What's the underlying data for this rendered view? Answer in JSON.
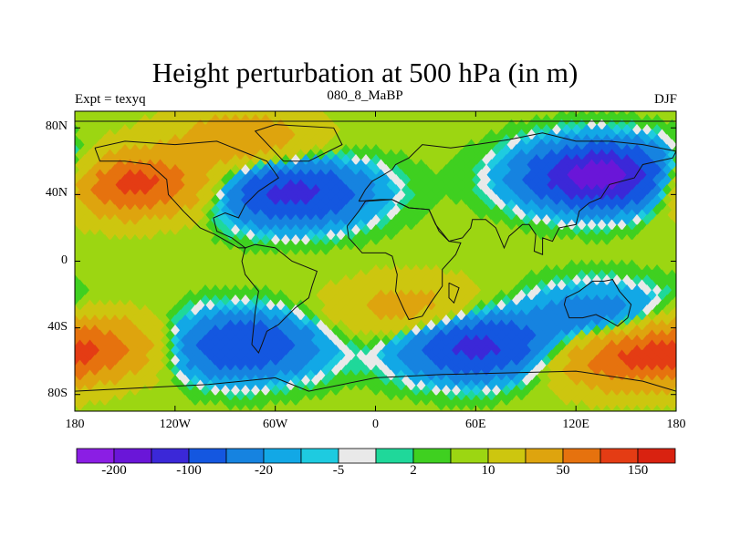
{
  "title": "Height perturbation at 500 hPa (in m)",
  "left_string": "Expt = texyq",
  "center_string": "080_8_MaBP",
  "right_string": "DJF",
  "lat_labels": [
    "80N",
    "40N",
    "0",
    "40S",
    "80S"
  ],
  "lon_labels": [
    "180",
    "120W",
    "60W",
    "0",
    "60E",
    "120E",
    "180"
  ],
  "colorbar": {
    "colors": [
      "#8b1ee4",
      "#6a16d8",
      "#3b28d8",
      "#1457e0",
      "#1683e0",
      "#12a8e6",
      "#1ecbe0",
      "#e9e9e9",
      "#1fd89a",
      "#3fd020",
      "#9cd612",
      "#cdc60f",
      "#dea40e",
      "#e6720e",
      "#e43c14",
      "#d92210"
    ],
    "labels": [
      "-200",
      "-100",
      "-20",
      "-5",
      "2",
      "10",
      "50",
      "150"
    ]
  },
  "chart_data": {
    "type": "heatmap",
    "title": "Height perturbation at 500 hPa (in m)",
    "subtitle": "080_8_MaBP",
    "xlabel": "",
    "ylabel": "",
    "x_ticks": [
      "180",
      "120W",
      "60W",
      "0",
      "60E",
      "120E",
      "180"
    ],
    "y_ticks": [
      "80N",
      "40N",
      "0",
      "40S",
      "80S"
    ],
    "xlim": [
      -180,
      180
    ],
    "ylim": [
      -90,
      90
    ],
    "contour_levels": [
      -200,
      -100,
      -20,
      -5,
      2,
      10,
      50,
      150
    ],
    "features": [
      {
        "lon": -145,
        "lat": 45,
        "value": 160
      },
      {
        "lon": -50,
        "lat": 40,
        "value": -130
      },
      {
        "lon": 135,
        "lat": 50,
        "value": -200
      },
      {
        "lon": -80,
        "lat": -52,
        "value": -110
      },
      {
        "lon": 60,
        "lat": -52,
        "value": -130
      },
      {
        "lon": 135,
        "lat": -35,
        "value": -60
      },
      {
        "lon": 150,
        "lat": -60,
        "value": 120
      },
      {
        "lon": -170,
        "lat": -52,
        "value": 110
      },
      {
        "lon": -80,
        "lat": 72,
        "value": 70
      },
      {
        "lon": 20,
        "lat": -30,
        "value": 60
      }
    ]
  }
}
